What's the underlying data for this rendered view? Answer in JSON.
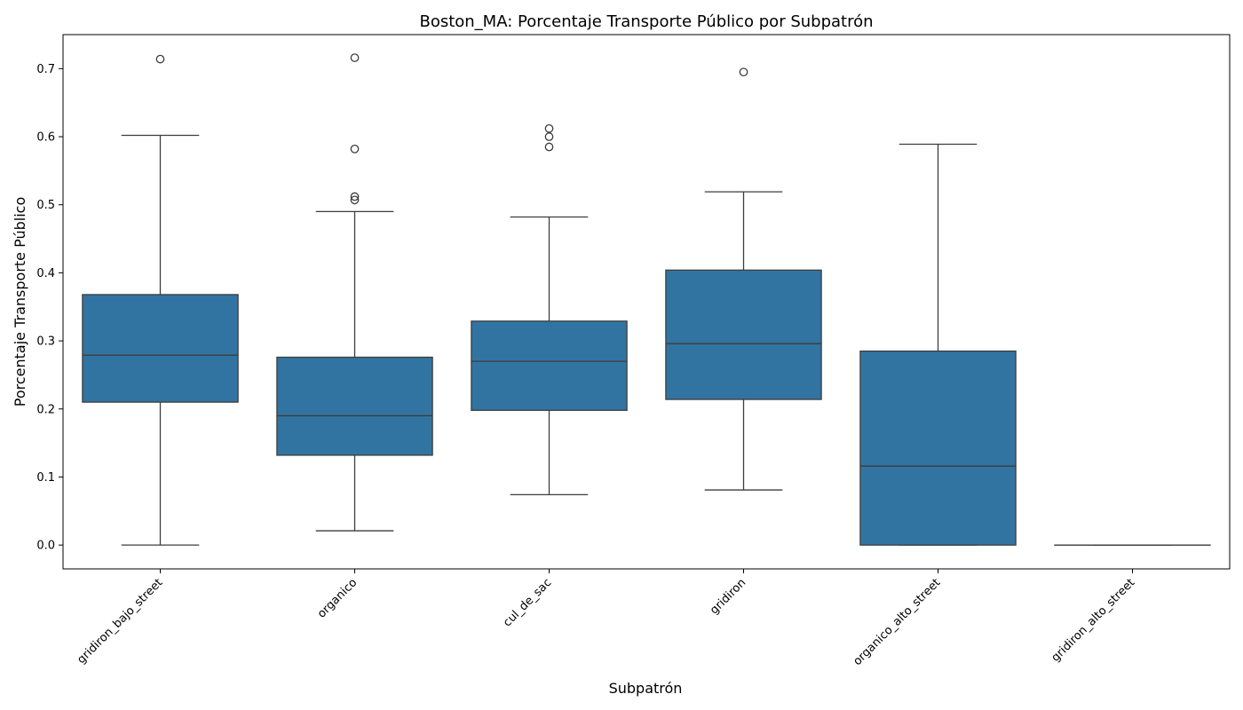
{
  "chart_data": {
    "type": "box",
    "title": "Boston_MA: Porcentaje Transporte Público por Subpatrón",
    "xlabel": "Subpatrón",
    "ylabel": "Porcentaje Transporte Público",
    "ylim": [
      -0.035,
      0.75
    ],
    "yticks": [
      0.0,
      0.1,
      0.2,
      0.3,
      0.4,
      0.5,
      0.6,
      0.7
    ],
    "ytick_labels": [
      "0.0",
      "0.1",
      "0.2",
      "0.3",
      "0.4",
      "0.5",
      "0.6",
      "0.7"
    ],
    "box_color": "#3274a1",
    "line_color": "#3d3d3d",
    "grid": false,
    "categories": [
      "gridiron_bajo_street",
      "organico",
      "cul_de_sac",
      "gridiron",
      "organico_alto_street",
      "gridiron_alto_street"
    ],
    "boxes": [
      {
        "category": "gridiron_bajo_street",
        "whisker_low": 0.0,
        "q1": 0.21,
        "median": 0.279,
        "q3": 0.368,
        "whisker_high": 0.602,
        "outliers": [
          0.714
        ]
      },
      {
        "category": "organico",
        "whisker_low": 0.021,
        "q1": 0.132,
        "median": 0.19,
        "q3": 0.276,
        "whisker_high": 0.49,
        "outliers": [
          0.507,
          0.512,
          0.582,
          0.716
        ]
      },
      {
        "category": "cul_de_sac",
        "whisker_low": 0.074,
        "q1": 0.198,
        "median": 0.27,
        "q3": 0.329,
        "whisker_high": 0.482,
        "outliers": [
          0.585,
          0.6,
          0.612
        ]
      },
      {
        "category": "gridiron",
        "whisker_low": 0.081,
        "q1": 0.214,
        "median": 0.296,
        "q3": 0.404,
        "whisker_high": 0.519,
        "outliers": [
          0.695
        ]
      },
      {
        "category": "organico_alto_street",
        "whisker_low": 0.0,
        "q1": 0.0,
        "median": 0.116,
        "q3": 0.285,
        "whisker_high": 0.589,
        "outliers": []
      },
      {
        "category": "gridiron_alto_street",
        "whisker_low": 0.0,
        "q1": 0.0,
        "median": 0.0,
        "q3": 0.0,
        "whisker_high": 0.0,
        "outliers": []
      }
    ]
  }
}
